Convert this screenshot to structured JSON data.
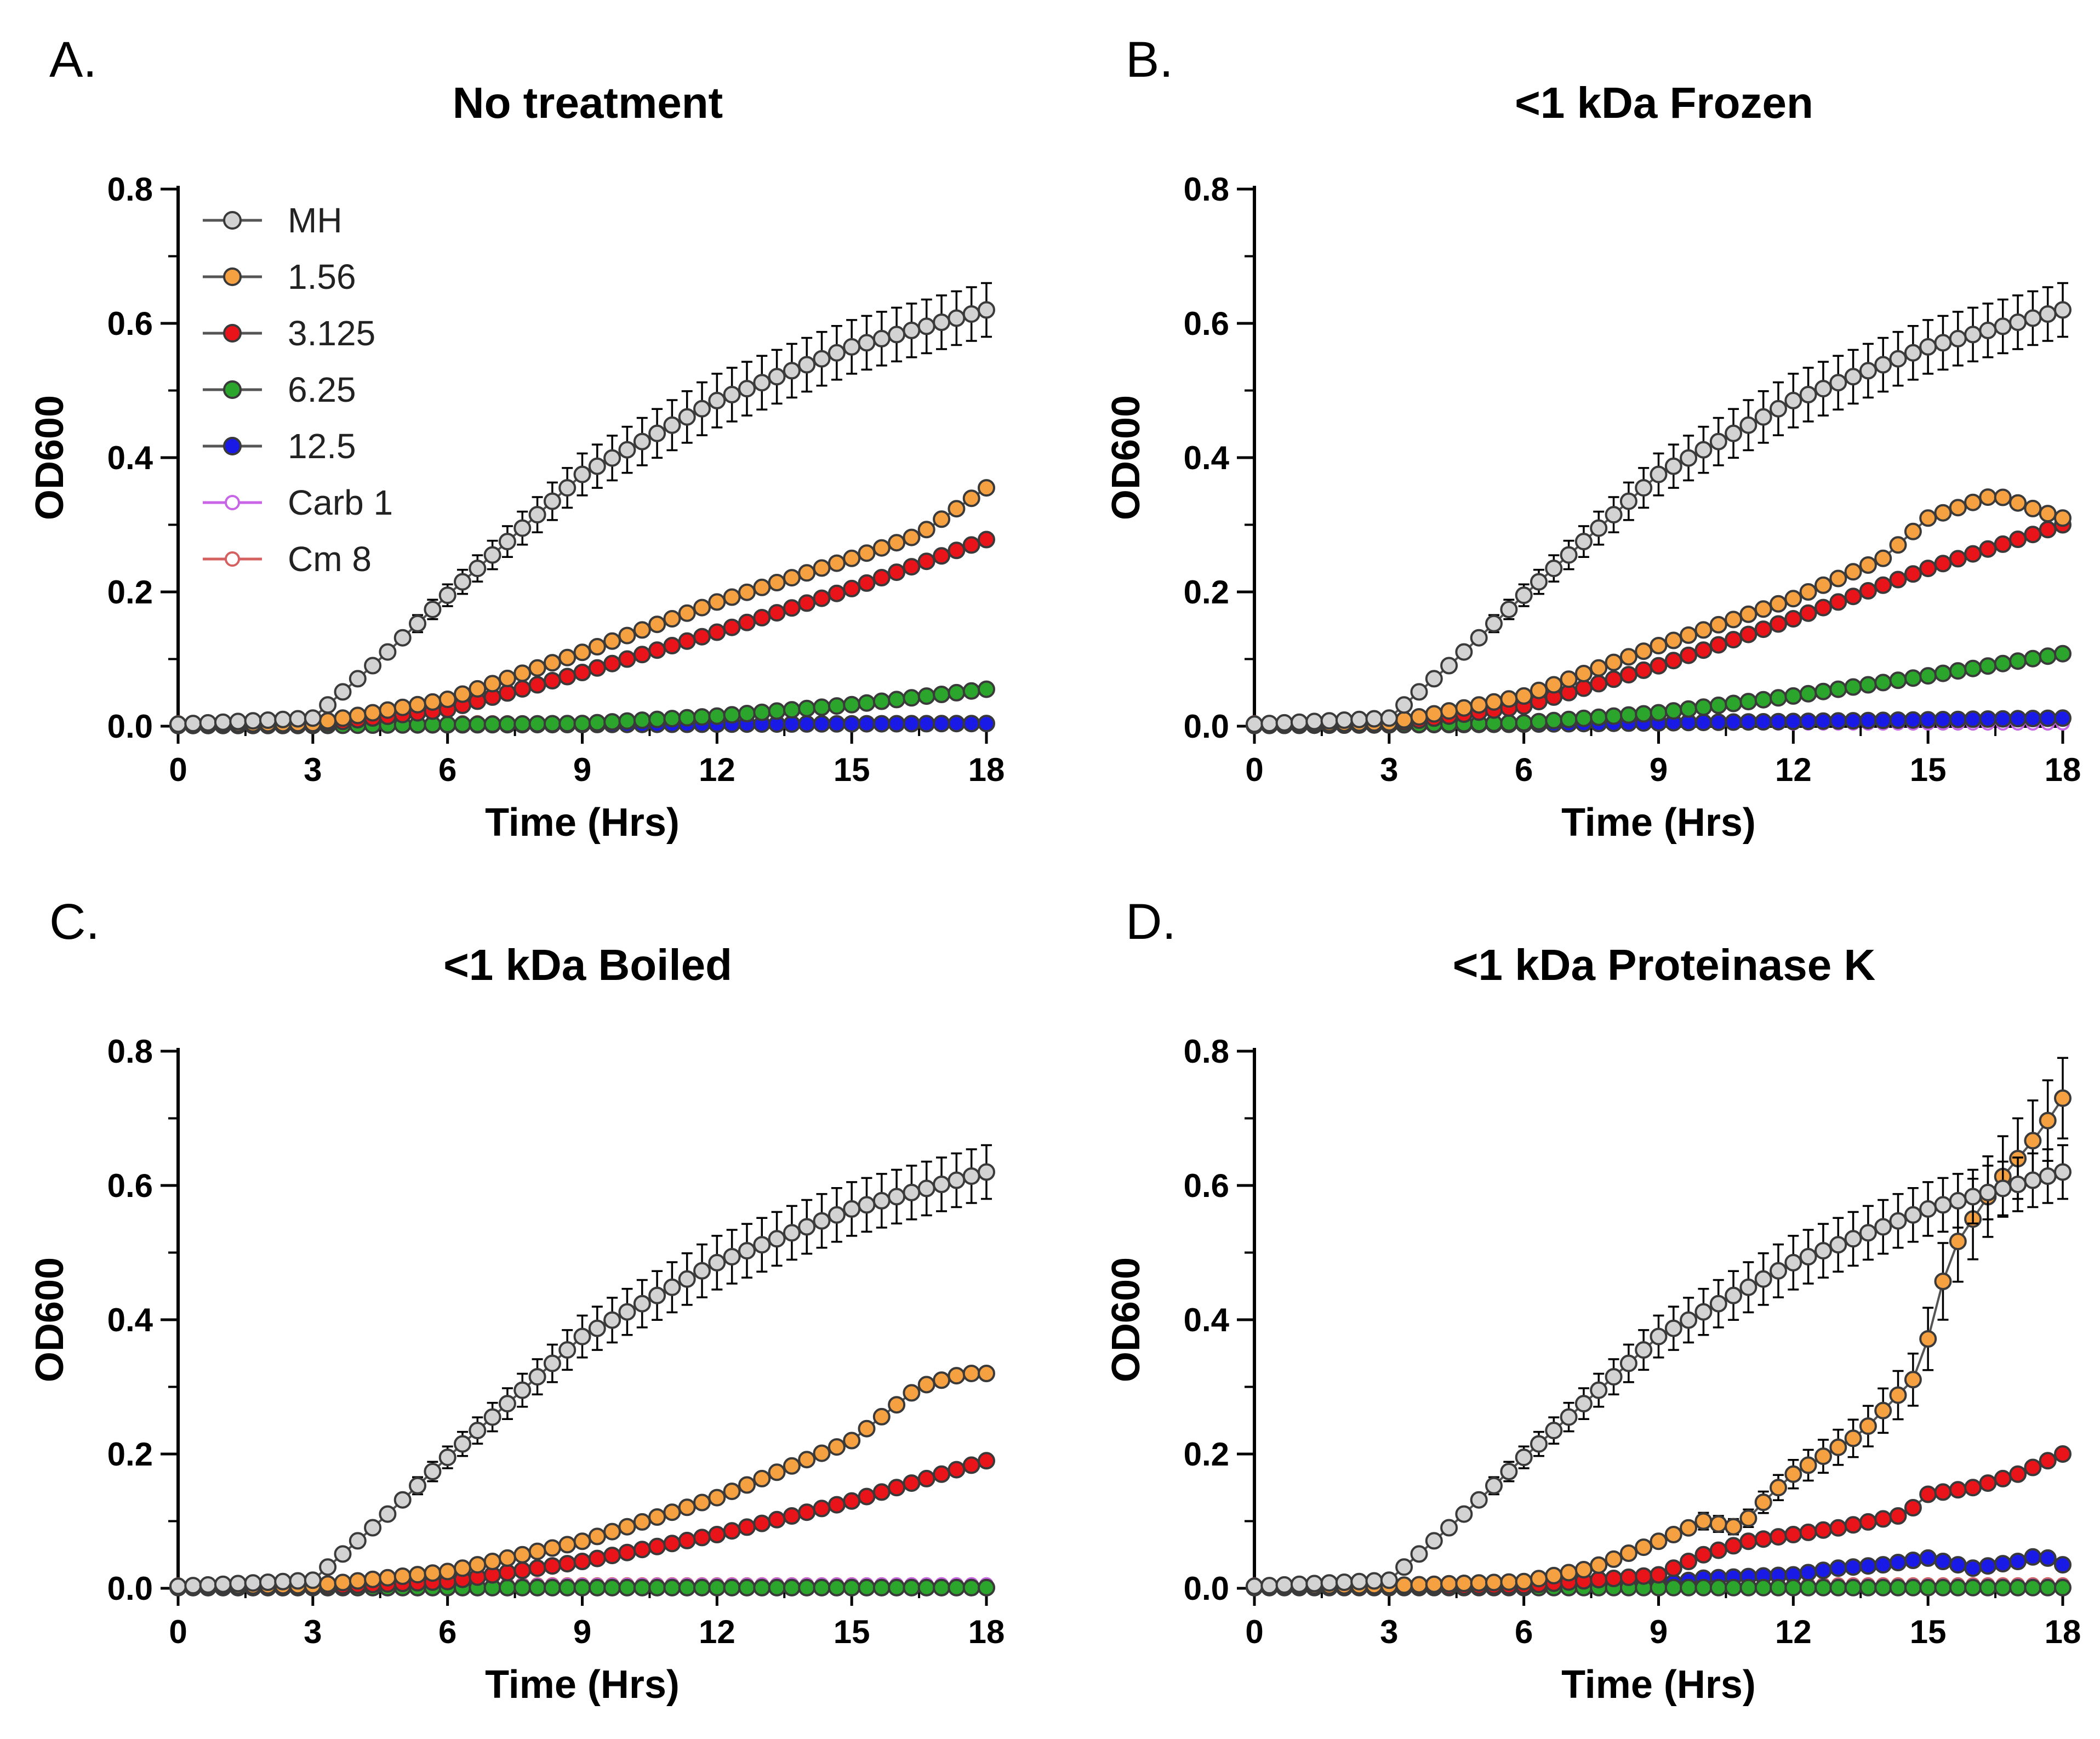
{
  "chart_data": [
    {
      "type": "line",
      "panel": "A.",
      "title": "No treatment",
      "xlabel": "Time (Hrs)",
      "ylabel": "OD600",
      "xlim": [
        0,
        18
      ],
      "ylim": [
        0,
        0.8
      ],
      "xticks": [
        "0",
        "3",
        "6",
        "9",
        "12",
        "15",
        "18"
      ],
      "yticks": [
        "0.0",
        "0.2",
        "0.4",
        "0.6",
        "0.8"
      ],
      "legend": true,
      "legend_position": "top-left",
      "series": [
        {
          "name": "MH",
          "color": "#d3d3d3",
          "filled": true,
          "error": 0.04,
          "points": [
            [
              0,
              0.003
            ],
            [
              3,
              0.012
            ],
            [
              4.5,
              0.1
            ],
            [
              6,
              0.195
            ],
            [
              9,
              0.375
            ],
            [
              12,
              0.485
            ],
            [
              15,
              0.565
            ],
            [
              18,
              0.62
            ]
          ]
        },
        {
          "name": "1.56",
          "color": "#f5a142",
          "filled": true,
          "error": 0.01,
          "points": [
            [
              0,
              0.003
            ],
            [
              3,
              0.004
            ],
            [
              6,
              0.04
            ],
            [
              9,
              0.11
            ],
            [
              12,
              0.185
            ],
            [
              15,
              0.25
            ],
            [
              16.5,
              0.285
            ],
            [
              18,
              0.355
            ]
          ]
        },
        {
          "name": "3.125",
          "color": "#e8141a",
          "filled": true,
          "error": 0.006,
          "points": [
            [
              0,
              0.002
            ],
            [
              3,
              0.002
            ],
            [
              6,
              0.025
            ],
            [
              9,
              0.08
            ],
            [
              12,
              0.14
            ],
            [
              15,
              0.205
            ],
            [
              18,
              0.278
            ]
          ]
        },
        {
          "name": "6.25",
          "color": "#2ba52b",
          "filled": true,
          "error": 0.003,
          "points": [
            [
              0,
              0.001
            ],
            [
              3,
              0.001
            ],
            [
              9,
              0.004
            ],
            [
              12,
              0.015
            ],
            [
              15,
              0.032
            ],
            [
              18,
              0.055
            ]
          ]
        },
        {
          "name": "12.5",
          "color": "#1a1ae6",
          "filled": true,
          "error": 0.002,
          "points": [
            [
              0,
              0.001
            ],
            [
              18,
              0.004
            ]
          ]
        },
        {
          "name": "Carb 1",
          "color": "#c864e6",
          "filled": false,
          "error": 0,
          "points": [
            [
              0,
              0.004
            ],
            [
              18,
              0.004
            ]
          ]
        },
        {
          "name": "Cm 8",
          "color": "#d46060",
          "filled": false,
          "error": 0,
          "points": [
            [
              0,
              0.006
            ],
            [
              18,
              0.006
            ]
          ]
        }
      ]
    },
    {
      "type": "line",
      "panel": "B.",
      "title": "<1 kDa Frozen",
      "xlabel": "Time (Hrs)",
      "ylabel": "OD600",
      "xlim": [
        0,
        18
      ],
      "ylim": [
        0,
        0.8
      ],
      "xticks": [
        "0",
        "3",
        "6",
        "9",
        "12",
        "15",
        "18"
      ],
      "yticks": [
        "0.0",
        "0.2",
        "0.4",
        "0.6",
        "0.8"
      ],
      "legend": false,
      "series": [
        {
          "name": "MH",
          "color": "#d3d3d3",
          "filled": true,
          "error": 0.04,
          "points": [
            [
              0,
              0.003
            ],
            [
              3,
              0.012
            ],
            [
              4.5,
              0.1
            ],
            [
              6,
              0.195
            ],
            [
              9,
              0.375
            ],
            [
              12,
              0.485
            ],
            [
              15,
              0.565
            ],
            [
              18,
              0.62
            ]
          ]
        },
        {
          "name": "1.56",
          "color": "#f5a142",
          "filled": true,
          "error": 0.008,
          "points": [
            [
              0,
              0.003
            ],
            [
              3,
              0.005
            ],
            [
              6,
              0.045
            ],
            [
              9,
              0.12
            ],
            [
              12,
              0.19
            ],
            [
              14,
              0.25
            ],
            [
              15,
              0.31
            ],
            [
              16.5,
              0.345
            ],
            [
              17.5,
              0.32
            ],
            [
              18,
              0.31
            ]
          ]
        },
        {
          "name": "3.125",
          "color": "#e8141a",
          "filled": true,
          "error": 0.012,
          "points": [
            [
              0,
              0.002
            ],
            [
              3,
              0.003
            ],
            [
              6,
              0.03
            ],
            [
              9,
              0.09
            ],
            [
              12,
              0.16
            ],
            [
              15,
              0.235
            ],
            [
              18,
              0.3
            ]
          ]
        },
        {
          "name": "6.25",
          "color": "#2ba52b",
          "filled": true,
          "error": 0.004,
          "points": [
            [
              0,
              0.001
            ],
            [
              3,
              0.002
            ],
            [
              6,
              0.005
            ],
            [
              9,
              0.02
            ],
            [
              12,
              0.045
            ],
            [
              15,
              0.075
            ],
            [
              18,
              0.108
            ]
          ]
        },
        {
          "name": "12.5",
          "color": "#1a1ae6",
          "filled": true,
          "error": 0.002,
          "points": [
            [
              0,
              0.001
            ],
            [
              6,
              0.003
            ],
            [
              12,
              0.007
            ],
            [
              18,
              0.012
            ]
          ]
        },
        {
          "name": "Carb 1",
          "color": "#c864e6",
          "filled": false,
          "error": 0,
          "points": [
            [
              0,
              0.004
            ],
            [
              18,
              0.004
            ]
          ]
        },
        {
          "name": "Cm 8",
          "color": "#d46060",
          "filled": false,
          "error": 0,
          "points": [
            [
              0,
              0.006
            ],
            [
              18,
              0.006
            ]
          ]
        }
      ]
    },
    {
      "type": "line",
      "panel": "C.",
      "title": "<1 kDa Boiled",
      "xlabel": "Time (Hrs)",
      "ylabel": "OD600",
      "xlim": [
        0,
        18
      ],
      "ylim": [
        0,
        0.8
      ],
      "xticks": [
        "0",
        "3",
        "6",
        "9",
        "12",
        "15",
        "18"
      ],
      "yticks": [
        "0.0",
        "0.2",
        "0.4",
        "0.6",
        "0.8"
      ],
      "legend": false,
      "series": [
        {
          "name": "MH",
          "color": "#d3d3d3",
          "filled": true,
          "error": 0.04,
          "points": [
            [
              0,
              0.003
            ],
            [
              3,
              0.012
            ],
            [
              4.5,
              0.1
            ],
            [
              6,
              0.195
            ],
            [
              9,
              0.375
            ],
            [
              12,
              0.485
            ],
            [
              15,
              0.565
            ],
            [
              18,
              0.62
            ]
          ]
        },
        {
          "name": "1.56",
          "color": "#f5a142",
          "filled": true,
          "error": 0.015,
          "points": [
            [
              0,
              0.003
            ],
            [
              3,
              0.004
            ],
            [
              6,
              0.025
            ],
            [
              9,
              0.07
            ],
            [
              12,
              0.135
            ],
            [
              15,
              0.22
            ],
            [
              16.5,
              0.3
            ],
            [
              17.5,
              0.32
            ],
            [
              18,
              0.32
            ]
          ]
        },
        {
          "name": "3.125",
          "color": "#e8141a",
          "filled": true,
          "error": 0.005,
          "points": [
            [
              0,
              0.002
            ],
            [
              3,
              0.002
            ],
            [
              6,
              0.01
            ],
            [
              9,
              0.04
            ],
            [
              12,
              0.08
            ],
            [
              15,
              0.13
            ],
            [
              18,
              0.19
            ]
          ]
        },
        {
          "name": "6.25",
          "color": "#2ba52b",
          "filled": true,
          "error": 0.002,
          "points": [
            [
              0,
              0.001
            ],
            [
              18,
              0.001
            ]
          ]
        },
        {
          "name": "12.5",
          "color": "#1a1ae6",
          "filled": true,
          "error": 0.002,
          "points": [
            [
              0,
              0.001
            ],
            [
              18,
              0.001
            ]
          ]
        },
        {
          "name": "Carb 1",
          "color": "#c864e6",
          "filled": false,
          "error": 0,
          "points": [
            [
              0,
              0.004
            ],
            [
              18,
              0.006
            ]
          ]
        },
        {
          "name": "Cm 8",
          "color": "#d46060",
          "filled": false,
          "error": 0,
          "points": [
            [
              0,
              0.006
            ],
            [
              18,
              0.006
            ]
          ]
        }
      ]
    },
    {
      "type": "line",
      "panel": "D.",
      "title": "<1 kDa Proteinase K",
      "xlabel": "Time (Hrs)",
      "ylabel": "OD600",
      "xlim": [
        0,
        18
      ],
      "ylim": [
        0,
        0.8
      ],
      "xticks": [
        "0",
        "3",
        "6",
        "9",
        "12",
        "15",
        "18"
      ],
      "yticks": [
        "0.0",
        "0.2",
        "0.4",
        "0.6",
        "0.8"
      ],
      "legend": false,
      "series": [
        {
          "name": "MH",
          "color": "#d3d3d3",
          "filled": true,
          "error": 0.04,
          "points": [
            [
              0,
              0.003
            ],
            [
              3,
              0.012
            ],
            [
              4.5,
              0.1
            ],
            [
              6,
              0.195
            ],
            [
              9,
              0.375
            ],
            [
              12,
              0.485
            ],
            [
              15,
              0.565
            ],
            [
              18,
              0.62
            ]
          ]
        },
        {
          "name": "1.56",
          "color": "#f5a142",
          "filled": true,
          "error": 0.06,
          "points": [
            [
              0,
              0.003
            ],
            [
              3,
              0.004
            ],
            [
              6,
              0.01
            ],
            [
              7.5,
              0.03
            ],
            [
              9,
              0.07
            ],
            [
              10,
              0.1
            ],
            [
              10.8,
              0.09
            ],
            [
              11.5,
              0.14
            ],
            [
              12,
              0.17
            ],
            [
              13.5,
              0.23
            ],
            [
              14.8,
              0.32
            ],
            [
              15.5,
              0.5
            ],
            [
              16.5,
              0.6
            ],
            [
              17.5,
              0.68
            ],
            [
              18,
              0.73
            ]
          ]
        },
        {
          "name": "3.125",
          "color": "#e8141a",
          "filled": true,
          "error": 0.008,
          "points": [
            [
              0,
              0.002
            ],
            [
              3,
              0.002
            ],
            [
              6,
              0.004
            ],
            [
              9,
              0.02
            ],
            [
              10,
              0.05
            ],
            [
              11,
              0.07
            ],
            [
              12,
              0.08
            ],
            [
              13,
              0.09
            ],
            [
              14.5,
              0.11
            ],
            [
              15,
              0.14
            ],
            [
              16,
              0.15
            ],
            [
              17,
              0.17
            ],
            [
              18,
              0.2
            ]
          ]
        },
        {
          "name": "6.25",
          "color": "#2ba52b",
          "filled": true,
          "error": 0.002,
          "points": [
            [
              0,
              0.001
            ],
            [
              18,
              0.001
            ]
          ]
        },
        {
          "name": "12.5",
          "color": "#1a1ae6",
          "filled": true,
          "error": 0.012,
          "points": [
            [
              0,
              0.001
            ],
            [
              6,
              0.002
            ],
            [
              9,
              0.005
            ],
            [
              10,
              0.015
            ],
            [
              12,
              0.02
            ],
            [
              13,
              0.03
            ],
            [
              14,
              0.035
            ],
            [
              15,
              0.045
            ],
            [
              16,
              0.03
            ],
            [
              17,
              0.04
            ],
            [
              17.5,
              0.05
            ],
            [
              18,
              0.035
            ]
          ]
        },
        {
          "name": "Carb 1",
          "color": "#c864e6",
          "filled": false,
          "error": 0,
          "points": [
            [
              0,
              0.004
            ],
            [
              18,
              0.004
            ]
          ]
        },
        {
          "name": "Cm 8",
          "color": "#d46060",
          "filled": false,
          "error": 0,
          "points": [
            [
              0,
              0.006
            ],
            [
              18,
              0.006
            ]
          ]
        }
      ]
    }
  ]
}
